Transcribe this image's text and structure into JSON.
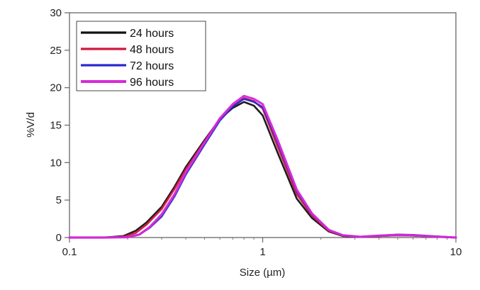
{
  "chart_data": {
    "type": "line",
    "title": "",
    "xlabel": "Size (µm)",
    "ylabel": "%V/d",
    "xscale": "log",
    "xlim": [
      0.1,
      10
    ],
    "ylim": [
      0,
      30
    ],
    "xticks": [
      {
        "value": 0.1,
        "label": "0.1"
      },
      {
        "value": 1,
        "label": "1"
      },
      {
        "value": 10,
        "label": "10"
      }
    ],
    "yticks": [
      {
        "value": 0,
        "label": "0"
      },
      {
        "value": 5,
        "label": "5"
      },
      {
        "value": 10,
        "label": "10"
      },
      {
        "value": 15,
        "label": "15"
      },
      {
        "value": 20,
        "label": "20"
      },
      {
        "value": 25,
        "label": "25"
      },
      {
        "value": 30,
        "label": "30"
      }
    ],
    "grid": false,
    "legend_position": "top-left",
    "series": [
      {
        "name": "24 hours",
        "color": "#111111",
        "points": [
          [
            0.1,
            0
          ],
          [
            0.15,
            0
          ],
          [
            0.19,
            0.2
          ],
          [
            0.22,
            0.9
          ],
          [
            0.25,
            2
          ],
          [
            0.3,
            4.1
          ],
          [
            0.35,
            6.8
          ],
          [
            0.4,
            9.4
          ],
          [
            0.5,
            13
          ],
          [
            0.6,
            15.8
          ],
          [
            0.7,
            17.3
          ],
          [
            0.8,
            18.1
          ],
          [
            0.9,
            17.6
          ],
          [
            1.0,
            16.3
          ],
          [
            1.2,
            11.2
          ],
          [
            1.5,
            5.2
          ],
          [
            1.8,
            2.6
          ],
          [
            2.2,
            0.8
          ],
          [
            2.6,
            0.2
          ],
          [
            3.2,
            0.1
          ],
          [
            4.0,
            0.2
          ],
          [
            5.0,
            0.3
          ],
          [
            6.0,
            0.25
          ],
          [
            7.5,
            0.15
          ],
          [
            10,
            0
          ]
        ]
      },
      {
        "name": "48 hours",
        "color": "#d0173c",
        "points": [
          [
            0.1,
            0
          ],
          [
            0.15,
            0
          ],
          [
            0.19,
            0.1
          ],
          [
            0.22,
            0.6
          ],
          [
            0.25,
            1.7
          ],
          [
            0.3,
            3.8
          ],
          [
            0.35,
            6.5
          ],
          [
            0.4,
            9.1
          ],
          [
            0.5,
            12.8
          ],
          [
            0.6,
            15.8
          ],
          [
            0.7,
            17.6
          ],
          [
            0.8,
            18.6
          ],
          [
            0.9,
            18.2
          ],
          [
            1.0,
            17.2
          ],
          [
            1.2,
            12
          ],
          [
            1.5,
            5.8
          ],
          [
            1.8,
            2.9
          ],
          [
            2.2,
            0.9
          ],
          [
            2.6,
            0.25
          ],
          [
            3.2,
            0.1
          ],
          [
            4.0,
            0.2
          ],
          [
            5.0,
            0.3
          ],
          [
            6.0,
            0.25
          ],
          [
            7.5,
            0.15
          ],
          [
            10,
            0
          ]
        ]
      },
      {
        "name": "72 hours",
        "color": "#2a2ad0",
        "points": [
          [
            0.1,
            0
          ],
          [
            0.15,
            0
          ],
          [
            0.2,
            0.05
          ],
          [
            0.23,
            0.4
          ],
          [
            0.26,
            1.3
          ],
          [
            0.3,
            2.8
          ],
          [
            0.35,
            5.5
          ],
          [
            0.4,
            8.4
          ],
          [
            0.5,
            12.4
          ],
          [
            0.6,
            15.6
          ],
          [
            0.7,
            17.5
          ],
          [
            0.8,
            18.5
          ],
          [
            0.9,
            18.1
          ],
          [
            1.0,
            17.4
          ],
          [
            1.2,
            12.6
          ],
          [
            1.5,
            6.2
          ],
          [
            1.8,
            3.1
          ],
          [
            2.2,
            1.0
          ],
          [
            2.6,
            0.3
          ],
          [
            3.2,
            0.1
          ],
          [
            4.0,
            0.25
          ],
          [
            5.0,
            0.4
          ],
          [
            6.0,
            0.35
          ],
          [
            7.5,
            0.2
          ],
          [
            10,
            0
          ]
        ]
      },
      {
        "name": "96 hours",
        "color": "#d62ad6",
        "points": [
          [
            0.1,
            0
          ],
          [
            0.15,
            0
          ],
          [
            0.2,
            0.05
          ],
          [
            0.23,
            0.4
          ],
          [
            0.26,
            1.4
          ],
          [
            0.3,
            3.1
          ],
          [
            0.35,
            5.8
          ],
          [
            0.4,
            8.7
          ],
          [
            0.5,
            12.7
          ],
          [
            0.6,
            15.9
          ],
          [
            0.7,
            17.8
          ],
          [
            0.8,
            18.9
          ],
          [
            0.9,
            18.5
          ],
          [
            1.0,
            17.8
          ],
          [
            1.2,
            12.9
          ],
          [
            1.5,
            6.4
          ],
          [
            1.8,
            3.2
          ],
          [
            2.2,
            1.0
          ],
          [
            2.6,
            0.3
          ],
          [
            3.2,
            0.1
          ],
          [
            4.0,
            0.25
          ],
          [
            5.0,
            0.35
          ],
          [
            6.0,
            0.3
          ],
          [
            7.5,
            0.15
          ],
          [
            10,
            0
          ]
        ]
      }
    ]
  }
}
